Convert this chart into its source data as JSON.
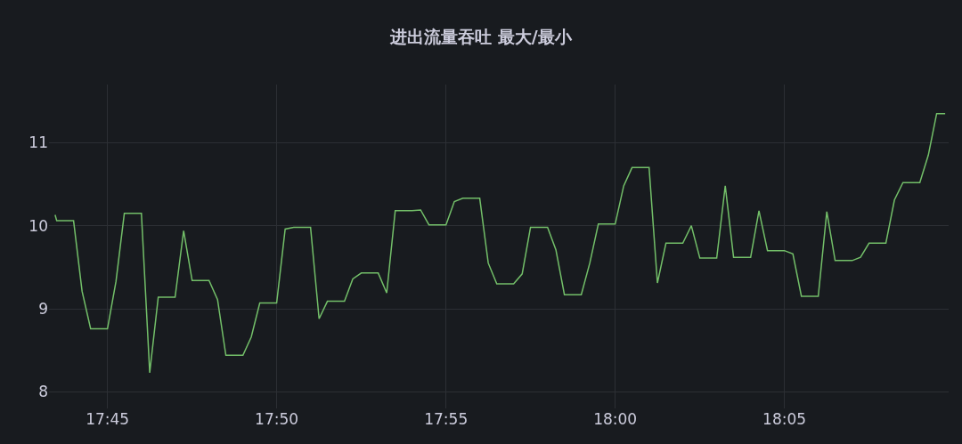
{
  "chart_data": {
    "type": "line",
    "title": "进出流量吞吐 最大/最小",
    "x": [
      17.7242,
      17.725,
      17.7333,
      17.7375,
      17.7417,
      17.75,
      17.7542,
      17.7583,
      17.7667,
      17.7708,
      17.775,
      17.7833,
      17.7875,
      17.7917,
      17.8,
      17.8042,
      17.8083,
      17.8167,
      17.8208,
      17.825,
      17.8333,
      17.8375,
      17.8417,
      17.85,
      17.8542,
      17.8583,
      17.8667,
      17.8708,
      17.875,
      17.8833,
      17.8875,
      17.8917,
      17.9,
      17.9042,
      17.9083,
      17.9167,
      17.9208,
      17.925,
      17.9333,
      17.9375,
      17.9417,
      17.95,
      17.9542,
      17.9583,
      17.9667,
      17.9708,
      17.975,
      17.9833,
      17.9875,
      17.9917,
      18.0,
      18.0042,
      18.0083,
      18.0167,
      18.0208,
      18.025,
      18.0333,
      18.0375,
      18.0417,
      18.05,
      18.0542,
      18.0583,
      18.0667,
      18.0708,
      18.075,
      18.0833,
      18.0875,
      18.0917,
      18.1,
      18.1042,
      18.1083,
      18.1167,
      18.1208,
      18.125,
      18.1333,
      18.1375,
      18.1417,
      18.15,
      18.1542,
      18.1583,
      18.1625
    ],
    "series": [
      {
        "color": "#73bf69",
        "values": [
          10.13,
          10.06,
          10.06,
          9.21,
          8.76,
          8.76,
          9.33,
          10.15,
          10.15,
          8.23,
          9.14,
          9.14,
          9.94,
          9.34,
          9.34,
          9.11,
          8.44,
          8.44,
          8.66,
          9.07,
          9.07,
          9.96,
          9.98,
          9.98,
          8.88,
          9.09,
          9.09,
          9.36,
          9.43,
          9.43,
          9.19,
          10.18,
          10.18,
          10.19,
          10.01,
          10.01,
          10.29,
          10.33,
          10.33,
          9.55,
          9.3,
          9.3,
          9.42,
          9.98,
          9.98,
          9.71,
          9.17,
          9.17,
          9.55,
          10.02,
          10.02,
          10.48,
          10.7,
          10.7,
          9.31,
          9.79,
          9.79,
          10.0,
          9.61,
          9.61,
          10.48,
          9.62,
          9.62,
          10.18,
          9.7,
          9.7,
          9.66,
          9.15,
          9.15,
          10.17,
          9.58,
          9.58,
          9.62,
          9.79,
          9.79,
          10.31,
          10.52,
          10.52,
          10.85,
          11.35,
          11.35
        ]
      }
    ],
    "xlim": [
      17.7212,
      18.1642
    ],
    "xticks": [
      {
        "value": 17.75,
        "label": "17:45"
      },
      {
        "value": 17.8333,
        "label": "17:50"
      },
      {
        "value": 17.9167,
        "label": "17:55"
      },
      {
        "value": 18.0,
        "label": "18:00"
      },
      {
        "value": 18.0833,
        "label": "18:05"
      }
    ],
    "ylim": [
      7.8,
      11.7
    ],
    "yticks": [
      8,
      9,
      10,
      11
    ],
    "grid": true,
    "marker": "none",
    "line_style": "solid"
  }
}
